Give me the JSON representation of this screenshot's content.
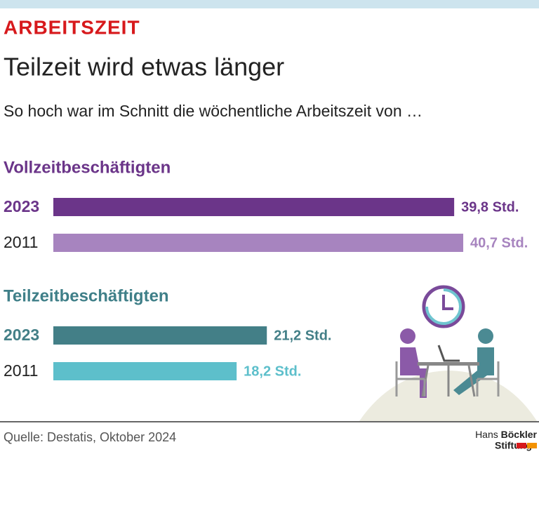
{
  "header": {
    "kicker": "ARBEITSZEIT",
    "title": "Teilzeit wird etwas länger",
    "subtitle": "So hoch war im Schnitt die wöchentliche Arbeitszeit von …"
  },
  "chart_data": [
    {
      "type": "bar",
      "title": "Vollzeitbeschäftigten",
      "title_color": "#6b3589",
      "categories": [
        "2023",
        "2011"
      ],
      "values": [
        39.8,
        40.7
      ],
      "value_labels": [
        "39,8 Std.",
        "40,7 Std."
      ],
      "colors": [
        "#6b3589",
        "#a784bf"
      ]
    },
    {
      "type": "bar",
      "title": "Teilzeitbeschäftigten",
      "title_color": "#3f7f88",
      "categories": [
        "2023",
        "2011"
      ],
      "values": [
        21.2,
        18.2
      ],
      "value_labels": [
        "21,2 Std.",
        "18,2 Std."
      ],
      "colors": [
        "#437f87",
        "#5dbfcb"
      ]
    }
  ],
  "footer": {
    "source": "Quelle: Destatis, Oktober 2024",
    "logo": [
      "Hans",
      "Böckler",
      "Stiftung"
    ]
  }
}
